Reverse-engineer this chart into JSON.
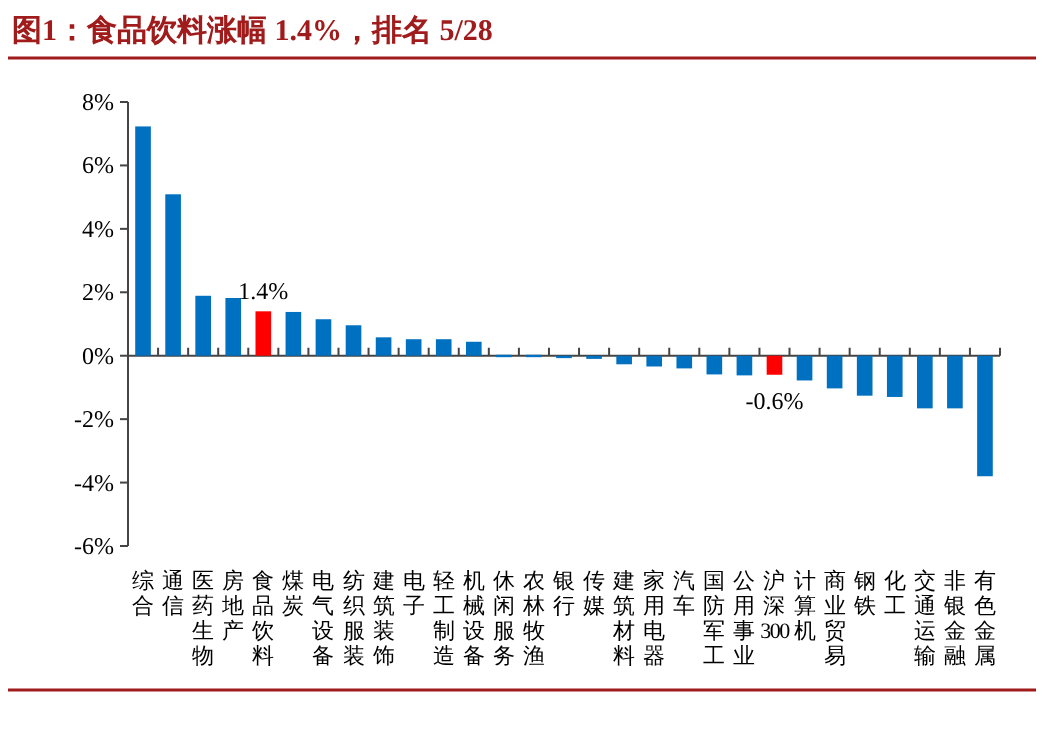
{
  "chart_data": {
    "type": "bar",
    "title": "图1：食品饮料涨幅 1.4%，排名 5/28",
    "categories": [
      "综合",
      "通信",
      "医药生物",
      "房地产",
      "食品饮料",
      "煤炭",
      "电气设备",
      "纺织服装",
      "建筑装饰",
      "电子",
      "轻工制造",
      "机械设备",
      "休闲服务",
      "农林牧渔",
      "银行",
      "传媒",
      "建筑材料",
      "家用电器",
      "汽车",
      "国防军工",
      "公用事业",
      "沪深300",
      "计算机",
      "商业贸易",
      "钢铁",
      "化工",
      "交通运输",
      "非银金融",
      "有色金属"
    ],
    "values": [
      7.23,
      5.09,
      1.89,
      1.82,
      1.4,
      1.38,
      1.15,
      0.96,
      0.58,
      0.52,
      0.52,
      0.44,
      0.03,
      0.03,
      -0.03,
      -0.1,
      -0.27,
      -0.34,
      -0.4,
      -0.59,
      -0.62,
      -0.6,
      -0.78,
      -1.03,
      -1.26,
      -1.3,
      -1.66,
      -1.66,
      -3.8
    ],
    "colors": [
      "#0070c0",
      "#0070c0",
      "#0070c0",
      "#0070c0",
      "#ff0000",
      "#0070c0",
      "#0070c0",
      "#0070c0",
      "#0070c0",
      "#0070c0",
      "#0070c0",
      "#0070c0",
      "#0070c0",
      "#0070c0",
      "#0070c0",
      "#0070c0",
      "#0070c0",
      "#0070c0",
      "#0070c0",
      "#0070c0",
      "#0070c0",
      "#ff0000",
      "#0070c0",
      "#0070c0",
      "#0070c0",
      "#0070c0",
      "#0070c0",
      "#0070c0",
      "#0070c0"
    ],
    "value_labels": [
      null,
      null,
      null,
      null,
      "1.4%",
      null,
      null,
      null,
      null,
      null,
      null,
      null,
      null,
      null,
      null,
      null,
      null,
      null,
      null,
      null,
      null,
      "-0.6%",
      null,
      null,
      null,
      null,
      null,
      null,
      null
    ],
    "ylim": [
      -6,
      8
    ],
    "yticks": [
      {
        "value": -6,
        "label": "-6%"
      },
      {
        "value": -4,
        "label": "-4%"
      },
      {
        "value": -2,
        "label": "-2%"
      },
      {
        "value": 0,
        "label": "0%"
      },
      {
        "value": 2,
        "label": "2%"
      },
      {
        "value": 4,
        "label": "4%"
      },
      {
        "value": 6,
        "label": "6%"
      },
      {
        "value": 8,
        "label": "8%"
      }
    ]
  }
}
